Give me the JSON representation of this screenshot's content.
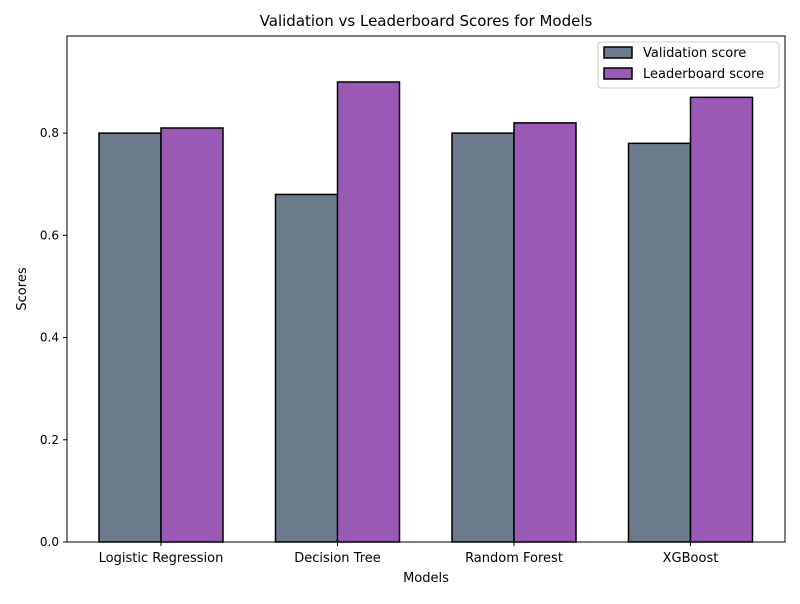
{
  "chart_data": {
    "type": "bar",
    "title": "Validation vs Leaderboard Scores for Models",
    "xlabel": "Models",
    "ylabel": "Scores",
    "categories": [
      "Logistic Regression",
      "Decision Tree",
      "Random Forest",
      "XGBoost"
    ],
    "series": [
      {
        "name": "Validation score",
        "values": [
          0.8,
          0.68,
          0.8,
          0.78
        ],
        "color": "#6b7b8b"
      },
      {
        "name": "Leaderboard score",
        "values": [
          0.81,
          0.9,
          0.82,
          0.87
        ],
        "color": "#9b59b6"
      }
    ],
    "ylim": [
      0,
      0.99
    ],
    "yticks": [
      "0.0",
      "0.2",
      "0.4",
      "0.6",
      "0.8"
    ],
    "grid": false,
    "legend_position": "top-right",
    "bar_edge_color": "#000000"
  }
}
